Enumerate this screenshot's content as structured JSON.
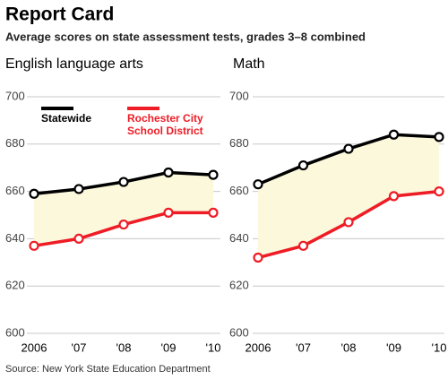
{
  "title": "Report Card",
  "subtitle": "Average scores on state assessment tests, grades 3–8 combined",
  "source": "Source: New York State Education Department",
  "chart_data": [
    {
      "type": "line",
      "title": "English language arts",
      "categories": [
        "2006",
        "'07",
        "'08",
        "'09",
        "'10"
      ],
      "series": [
        {
          "name": "Statewide",
          "color": "#000000",
          "values": [
            659,
            661,
            664,
            668,
            667
          ]
        },
        {
          "name": "Rochester City School District",
          "color": "#ee1c25",
          "values": [
            637,
            640,
            646,
            651,
            651
          ]
        }
      ],
      "fill_between": "#fbf8dc",
      "ylim": [
        600,
        700
      ],
      "yticks": [
        600,
        620,
        640,
        660,
        680,
        700
      ],
      "grid": true
    },
    {
      "type": "line",
      "title": "Math",
      "categories": [
        "2006",
        "'07",
        "'08",
        "'09",
        "'10"
      ],
      "series": [
        {
          "color": "#000000",
          "values": [
            663,
            671,
            678,
            684,
            683
          ]
        },
        {
          "color": "#ee1c25",
          "values": [
            632,
            637,
            647,
            658,
            660
          ]
        }
      ],
      "fill_between": "#fbf8dc",
      "ylim": [
        600,
        700
      ],
      "yticks": [
        600,
        620,
        640,
        660,
        680,
        700
      ],
      "grid": true
    }
  ]
}
